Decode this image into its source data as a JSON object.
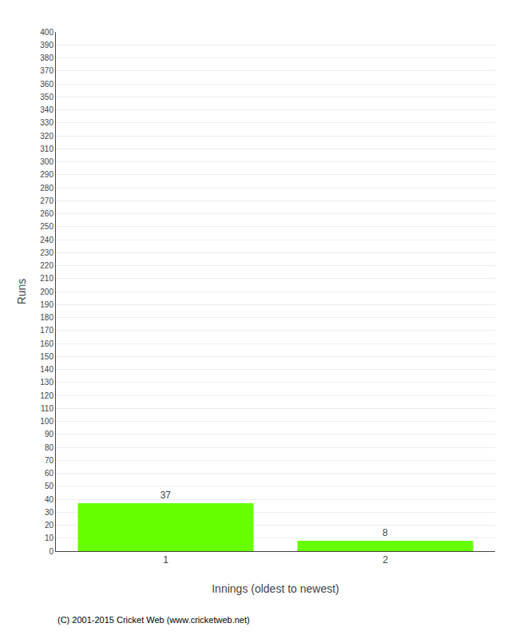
{
  "chart_data": {
    "type": "bar",
    "xlabel": "Innings (oldest to newest)",
    "ylabel": "Runs",
    "categories": [
      "1",
      "2"
    ],
    "values": [
      37,
      8
    ],
    "color": "#66ff00",
    "ylim": [
      0,
      400
    ],
    "yticks": [
      0,
      10,
      20,
      30,
      40,
      50,
      60,
      70,
      80,
      90,
      100,
      110,
      120,
      130,
      140,
      150,
      160,
      170,
      180,
      190,
      200,
      210,
      220,
      230,
      240,
      250,
      260,
      270,
      280,
      290,
      300,
      310,
      320,
      330,
      340,
      350,
      360,
      370,
      380,
      390,
      400
    ],
    "grid": true,
    "data_labels": true,
    "annotations": [
      "(C) 2001-2015 Cricket Web (www.cricketweb.net)"
    ]
  }
}
